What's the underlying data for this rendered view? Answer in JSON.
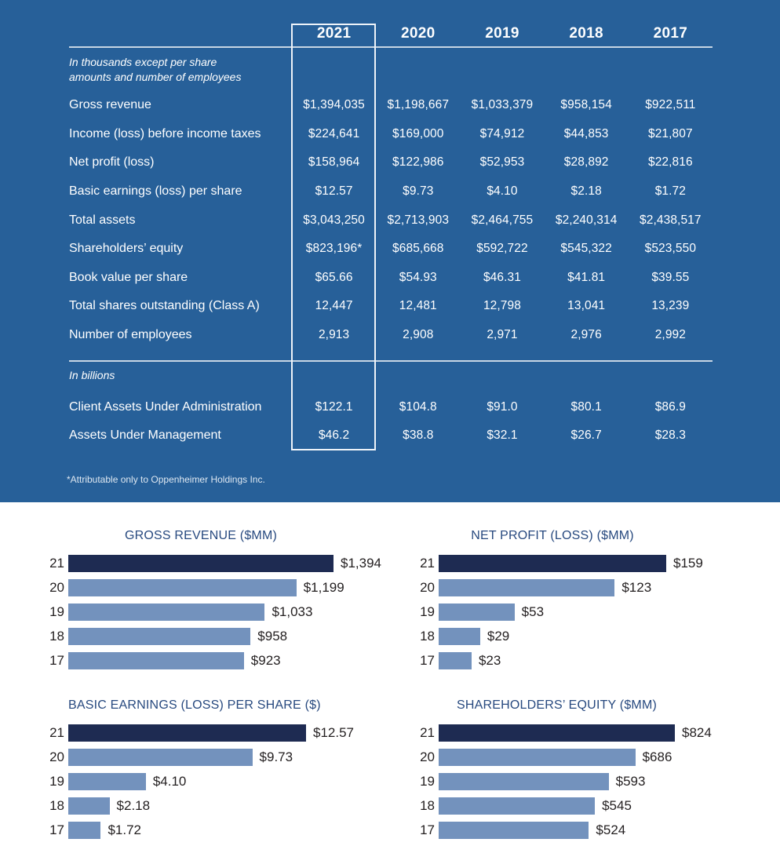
{
  "panel": {
    "years": [
      "2021",
      "2020",
      "2019",
      "2018",
      "2017"
    ],
    "note_thousands": "In thousands except per share amounts and number of employees",
    "note_billions": "In billions",
    "footnote": "*Attributable only to Oppenheimer Holdings Inc.",
    "rows_thousands": [
      {
        "label": "Gross revenue",
        "values": [
          "$1,394,035",
          "$1,198,667",
          "$1,033,379",
          "$958,154",
          "$922,511"
        ]
      },
      {
        "label": "Income (loss) before income taxes",
        "values": [
          "$224,641",
          "$169,000",
          "$74,912",
          "$44,853",
          "$21,807"
        ]
      },
      {
        "label": "Net profit (loss)",
        "values": [
          "$158,964",
          "$122,986",
          "$52,953",
          "$28,892",
          "$22,816"
        ]
      },
      {
        "label": "Basic earnings (loss) per share",
        "values": [
          "$12.57",
          "$9.73",
          "$4.10",
          "$2.18",
          "$1.72"
        ]
      },
      {
        "label": "Total assets",
        "values": [
          "$3,043,250",
          "$2,713,903",
          "$2,464,755",
          "$2,240,314",
          "$2,438,517"
        ]
      },
      {
        "label": "Shareholders’ equity",
        "values": [
          "$823,196*",
          "$685,668",
          "$592,722",
          "$545,322",
          "$523,550"
        ]
      },
      {
        "label": "Book value per share",
        "values": [
          "$65.66",
          "$54.93",
          "$46.31",
          "$41.81",
          "$39.55"
        ]
      },
      {
        "label": "Total shares outstanding (Class A)",
        "values": [
          "12,447",
          "12,481",
          "12,798",
          "13,041",
          "13,239"
        ]
      },
      {
        "label": "Number of employees",
        "values": [
          "2,913",
          "2,908",
          "2,971",
          "2,976",
          "2,992"
        ]
      }
    ],
    "rows_billions": [
      {
        "label": "Client Assets Under Administration",
        "values": [
          "$122.1",
          "$104.8",
          "$91.0",
          "$80.1",
          "$86.9"
        ]
      },
      {
        "label": "Assets Under Management",
        "values": [
          "$46.2",
          "$38.8",
          "$32.1",
          "$26.7",
          "$28.3"
        ]
      }
    ]
  },
  "chart_data": [
    {
      "type": "bar",
      "orientation": "horizontal",
      "name": "gross-revenue",
      "title": "GROSS REVENUE ($MM)",
      "categories": [
        "21",
        "20",
        "19",
        "18",
        "17"
      ],
      "values": [
        1394,
        1199,
        1033,
        958,
        923
      ],
      "labels": [
        "$1,394",
        "$1,199",
        "$1,033",
        "$958",
        "$923"
      ],
      "xlim": [
        0,
        1394
      ],
      "grid": false,
      "legend": "none"
    },
    {
      "type": "bar",
      "orientation": "horizontal",
      "name": "net-profit-loss",
      "title": "NET PROFIT (LOSS) ($MM)",
      "categories": [
        "21",
        "20",
        "19",
        "18",
        "17"
      ],
      "values": [
        159,
        123,
        53,
        29,
        23
      ],
      "labels": [
        "$159",
        "$123",
        "$53",
        "$29",
        "$23"
      ],
      "xlim": [
        0,
        159
      ],
      "grid": false,
      "legend": "none"
    },
    {
      "type": "bar",
      "orientation": "horizontal",
      "name": "basic-earnings-per-share",
      "title": "BASIC EARNINGS (LOSS) PER SHARE ($)",
      "categories": [
        "21",
        "20",
        "19",
        "18",
        "17"
      ],
      "values": [
        12.57,
        9.73,
        4.1,
        2.18,
        1.72
      ],
      "labels": [
        "$12.57",
        "$9.73",
        "$4.10",
        "$2.18",
        "$1.72"
      ],
      "xlim": [
        0,
        12.57
      ],
      "grid": false,
      "legend": "none"
    },
    {
      "type": "bar",
      "orientation": "horizontal",
      "name": "shareholders-equity",
      "title": "SHAREHOLDERS’ EQUITY ($MM)",
      "categories": [
        "21",
        "20",
        "19",
        "18",
        "17"
      ],
      "values": [
        824,
        686,
        593,
        545,
        524
      ],
      "labels": [
        "$824",
        "$686",
        "$593",
        "$545",
        "$524"
      ],
      "xlim": [
        0,
        824
      ],
      "grid": false,
      "legend": "none"
    }
  ],
  "colors": {
    "panel_bg": "#276099",
    "bar_current_year": "#1e2b52",
    "bar_prior_years": "#7392bd",
    "chart_title": "#27497f",
    "chart_text": "#231f20",
    "table_text": "#ffffff",
    "rule": "#c7d6e4",
    "highlight_box_border": "#eef3f9"
  }
}
